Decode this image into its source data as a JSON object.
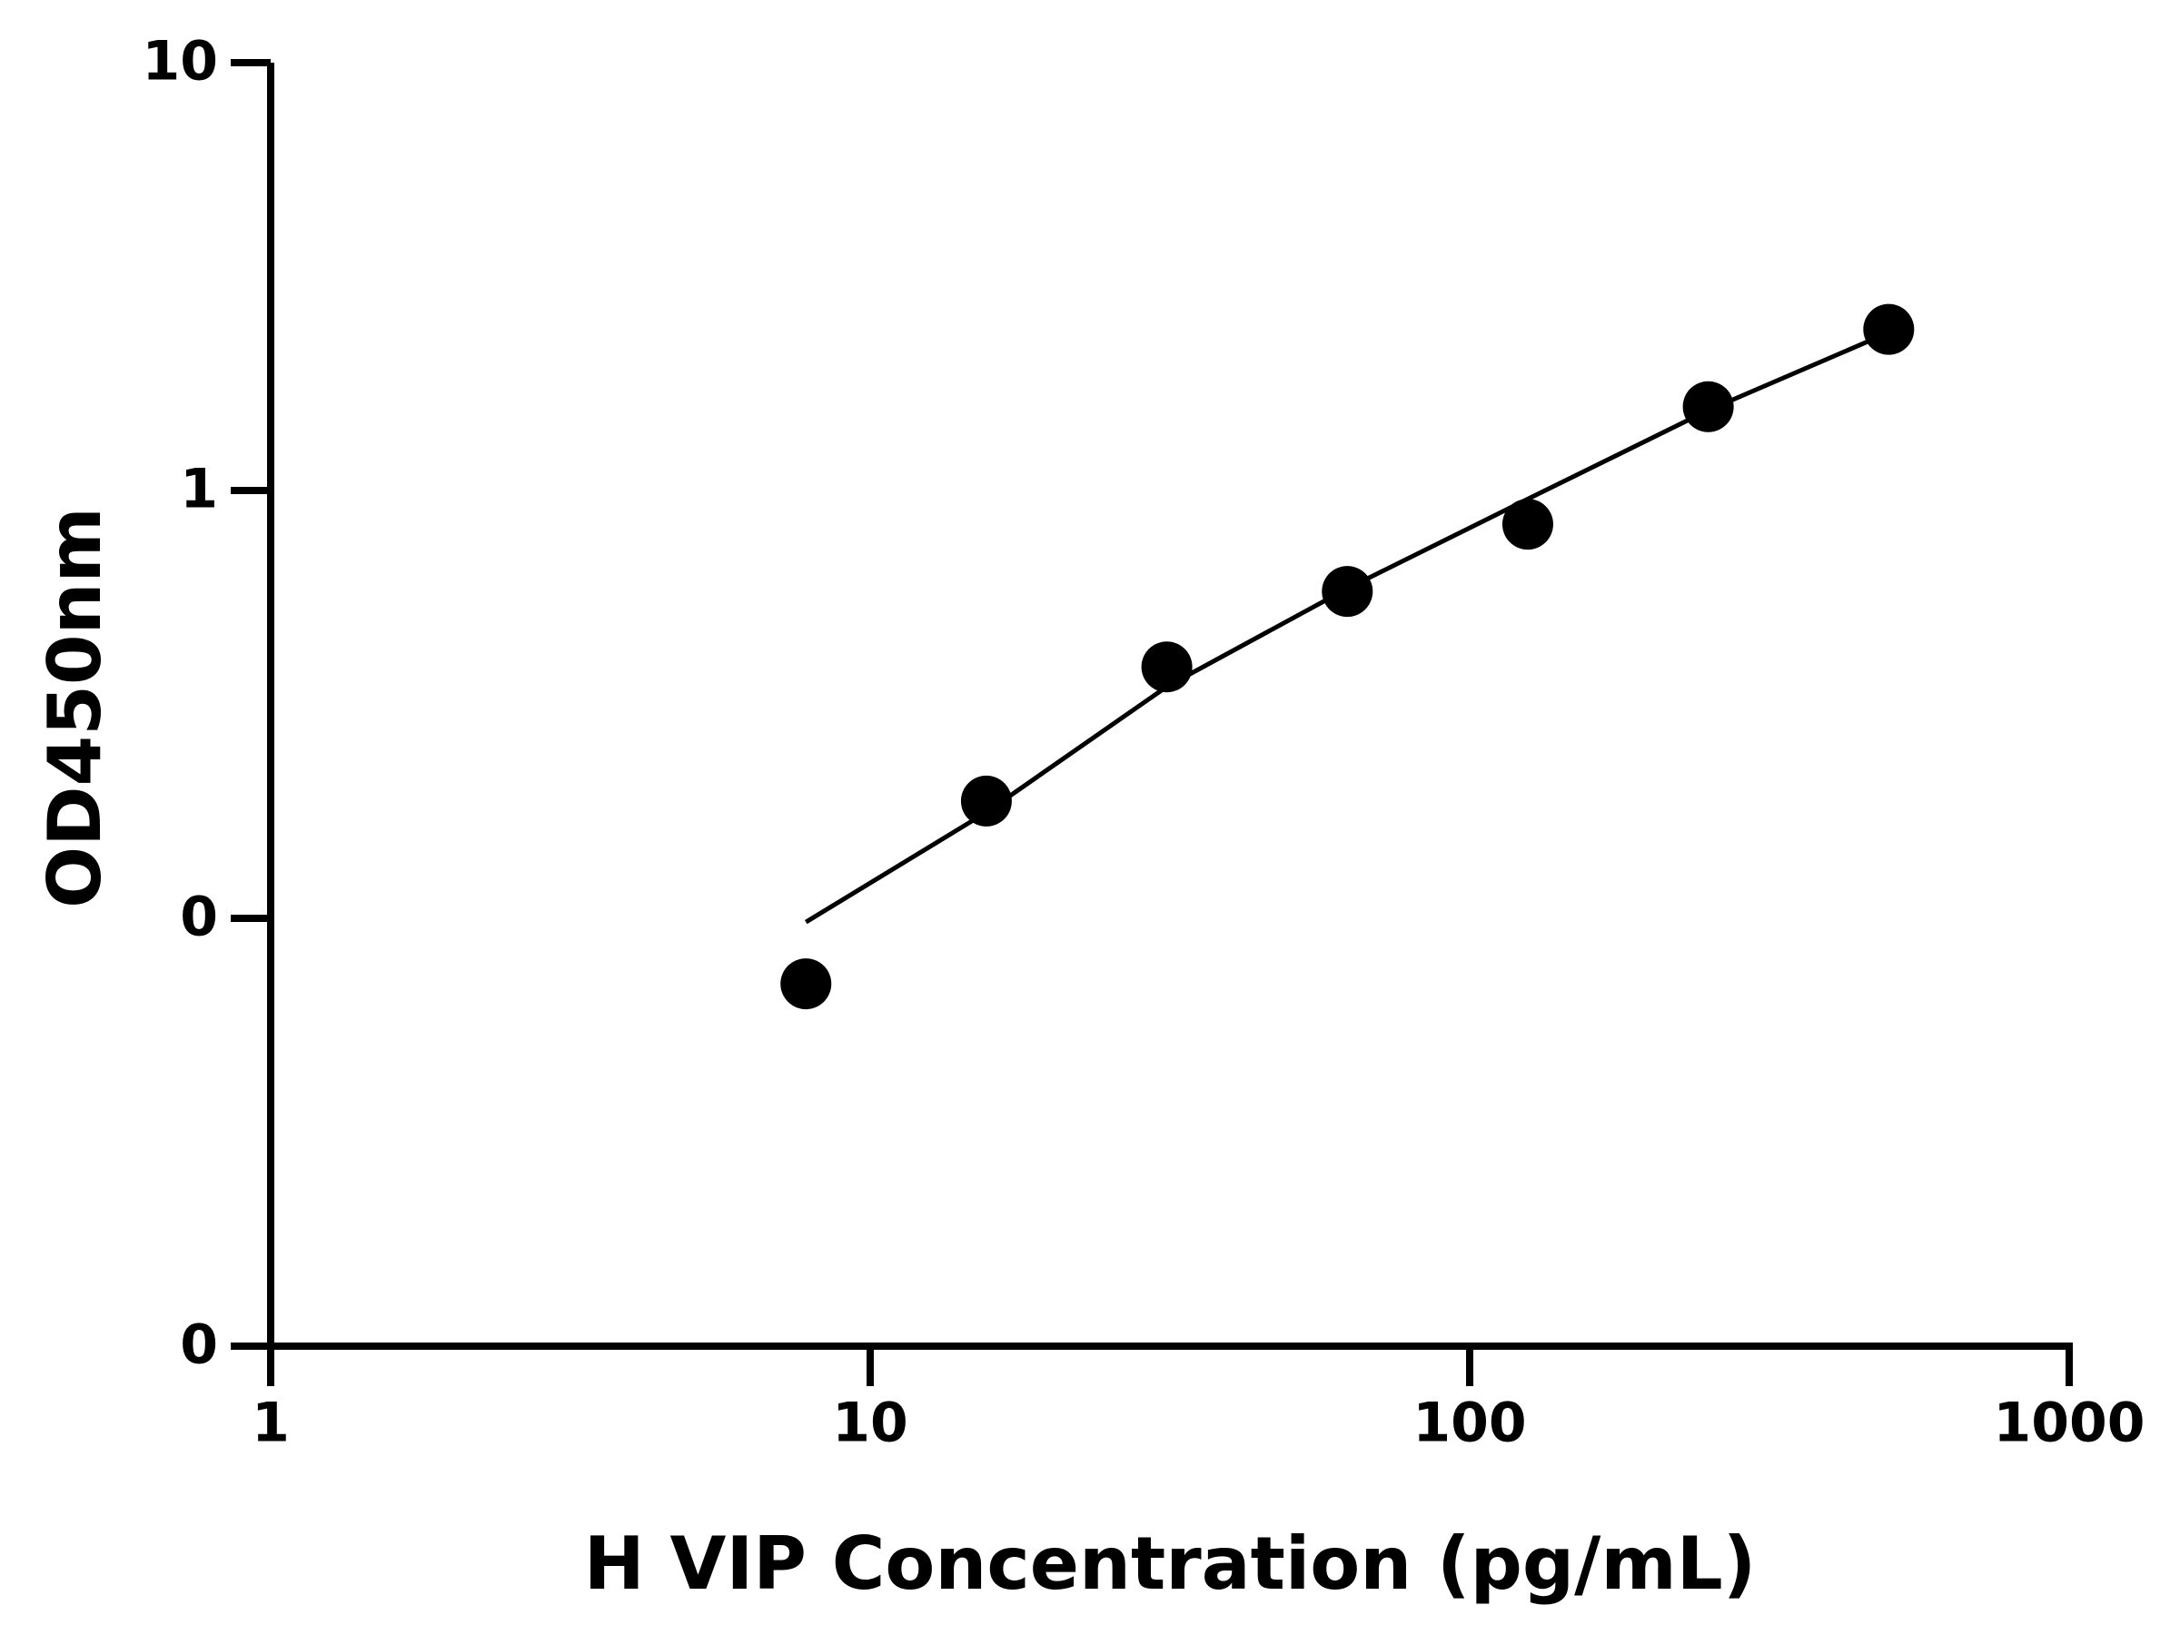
{
  "chart_data": {
    "type": "scatter",
    "x_label": "H VIP Concentration (pg/mL)",
    "y_label": "OD450nm",
    "xlog": true,
    "ylog": true,
    "xlim": [
      1,
      1000
    ],
    "ylim": [
      0.01,
      10
    ],
    "xticks": [
      1,
      10,
      100,
      1000
    ],
    "yticks": [
      {
        "value": 0.01,
        "label": "0"
      },
      {
        "value": 0.1,
        "label": "0"
      },
      1,
      10
    ],
    "series": [
      {
        "type": "scatter",
        "color": "#000000",
        "x": [
          7.8125,
          15.625,
          31.25,
          62.5,
          125,
          250,
          500
        ],
        "values": [
          0.0703,
          0.188,
          0.387,
          0.581,
          0.834,
          1.57,
          2.38
        ]
      },
      {
        "type": "line",
        "color": "#000000",
        "x": [
          7.8125,
          15.625,
          31.25,
          62.5,
          125,
          250,
          500
        ],
        "values": [
          0.098,
          0.177,
          0.348,
          0.59,
          0.955,
          1.54,
          2.34
        ]
      }
    ]
  }
}
